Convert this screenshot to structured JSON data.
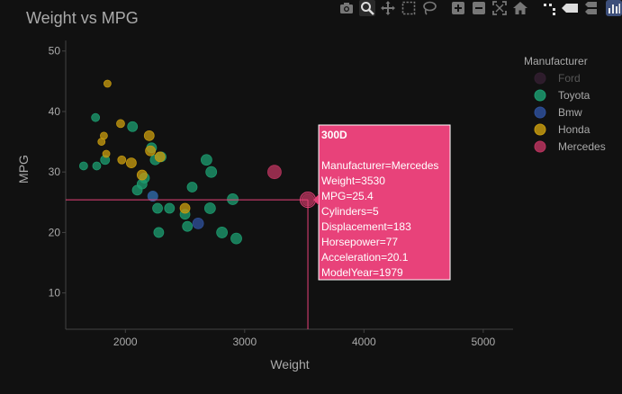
{
  "chart_data": {
    "type": "scatter",
    "title": "Weight vs MPG",
    "xlabel": "Weight",
    "ylabel": "MPG",
    "xlim": [
      1500,
      5250
    ],
    "ylim": [
      4,
      51
    ],
    "xticks": [
      2000,
      3000,
      4000,
      5000
    ],
    "yticks": [
      10,
      20,
      30,
      40,
      50
    ],
    "grid": false,
    "legend": {
      "title": "Manufacturer",
      "placement": "right"
    },
    "series": [
      {
        "name": "Ford",
        "color": "#5a2e56",
        "hidden": true,
        "points": []
      },
      {
        "name": "Toyota",
        "color": "#1c9a6e",
        "points": [
          {
            "x": 1650,
            "y": 31,
            "s": 9
          },
          {
            "x": 1750,
            "y": 39,
            "s": 9
          },
          {
            "x": 1760,
            "y": 31,
            "s": 9
          },
          {
            "x": 1830,
            "y": 32,
            "s": 10
          },
          {
            "x": 2060,
            "y": 37.5,
            "s": 11
          },
          {
            "x": 2100,
            "y": 27,
            "s": 11
          },
          {
            "x": 2140,
            "y": 28,
            "s": 11
          },
          {
            "x": 2160,
            "y": 29,
            "s": 11
          },
          {
            "x": 2220,
            "y": 34,
            "s": 11
          },
          {
            "x": 2250,
            "y": 32,
            "s": 11
          },
          {
            "x": 2300,
            "y": 32.5,
            "s": 11
          },
          {
            "x": 2230,
            "y": 26,
            "s": 11
          },
          {
            "x": 2270,
            "y": 24,
            "s": 11
          },
          {
            "x": 2370,
            "y": 24,
            "s": 11
          },
          {
            "x": 2280,
            "y": 20,
            "s": 11
          },
          {
            "x": 2500,
            "y": 23,
            "s": 11
          },
          {
            "x": 2520,
            "y": 21,
            "s": 11
          },
          {
            "x": 2560,
            "y": 27.5,
            "s": 11
          },
          {
            "x": 2680,
            "y": 32,
            "s": 12
          },
          {
            "x": 2720,
            "y": 30,
            "s": 12
          },
          {
            "x": 2710,
            "y": 24,
            "s": 12
          },
          {
            "x": 2810,
            "y": 20,
            "s": 12
          },
          {
            "x": 2900,
            "y": 25.5,
            "s": 12
          },
          {
            "x": 2930,
            "y": 19,
            "s": 12
          }
        ]
      },
      {
        "name": "Bmw",
        "color": "#2e4f99",
        "points": [
          {
            "x": 2230,
            "y": 26,
            "s": 11
          },
          {
            "x": 2610,
            "y": 21.5,
            "s": 12
          }
        ]
      },
      {
        "name": "Honda",
        "color": "#c4990f",
        "points": [
          {
            "x": 1800,
            "y": 35,
            "s": 8
          },
          {
            "x": 1820,
            "y": 36,
            "s": 8
          },
          {
            "x": 1840,
            "y": 33,
            "s": 8
          },
          {
            "x": 1850,
            "y": 44.6,
            "s": 8
          },
          {
            "x": 1960,
            "y": 38,
            "s": 9
          },
          {
            "x": 1970,
            "y": 32,
            "s": 9
          },
          {
            "x": 2050,
            "y": 31.5,
            "s": 11
          },
          {
            "x": 2140,
            "y": 29.5,
            "s": 11
          },
          {
            "x": 2200,
            "y": 36,
            "s": 11
          },
          {
            "x": 2210,
            "y": 33.5,
            "s": 11
          },
          {
            "x": 2290,
            "y": 32.5,
            "s": 11
          },
          {
            "x": 2500,
            "y": 24,
            "s": 11
          }
        ]
      },
      {
        "name": "Mercedes",
        "color": "#b8345e",
        "points": [
          {
            "x": 3250,
            "y": 30,
            "s": 15
          },
          {
            "x": 3530,
            "y": 25.4,
            "s": 14
          }
        ]
      }
    ],
    "hover": {
      "title": "300D",
      "lines": [
        "Manufacturer=Mercedes",
        "Weight=3530",
        "MPG=25.4",
        "Cylinders=5",
        "Displacement=183",
        "Horsepower=77",
        "Acceleration=20.1",
        "ModelYear=1979"
      ],
      "x": 3530,
      "y": 25.4,
      "color": "#e8427a"
    }
  },
  "modebar": [
    "camera-icon",
    "zoom-icon",
    "pan-icon",
    "box-select-icon",
    "lasso-select-icon",
    "zoom-in-icon",
    "zoom-out-icon",
    "autoscale-icon",
    "reset-axes-icon",
    "spike-lines-icon",
    "hover-closest-icon",
    "hover-compare-icon",
    "plotly-logo-icon"
  ]
}
